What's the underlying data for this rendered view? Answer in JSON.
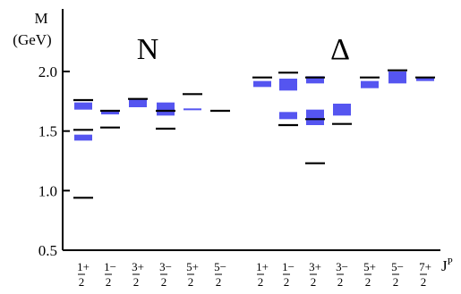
{
  "chart_data": {
    "type": "spectrum",
    "ylabel_line1": "M",
    "ylabel_line2": "(GeV)",
    "xlabel": "J",
    "xlabel_sup": "P",
    "ylim": [
      0.5,
      2.2
    ],
    "yticks": [
      0.5,
      1.0,
      1.5,
      2.0
    ],
    "ytick_labels": [
      "0.5",
      "1.0",
      "1.5",
      "2.0"
    ],
    "colors": {
      "band": "#5555f0",
      "line": "#000000"
    },
    "groups": [
      {
        "name": "N",
        "columns": [
          {
            "num": "1",
            "parity": "+",
            "den": "2",
            "bands": [
              [
                1.68,
                1.74
              ],
              [
                1.42,
                1.47
              ]
            ],
            "lines": [
              1.76,
              1.51,
              0.94
            ]
          },
          {
            "num": "1",
            "parity": "−",
            "den": "2",
            "bands": [
              [
                1.64,
                1.67
              ]
            ],
            "lines": [
              1.67,
              1.53
            ]
          },
          {
            "num": "3",
            "parity": "+",
            "den": "2",
            "bands": [
              [
                1.7,
                1.77
              ]
            ],
            "lines": [
              1.77
            ]
          },
          {
            "num": "3",
            "parity": "−",
            "den": "2",
            "bands": [
              [
                1.63,
                1.74
              ]
            ],
            "lines": [
              1.67,
              1.52
            ]
          },
          {
            "num": "5",
            "parity": "+",
            "den": "2",
            "bands": [
              [
                1.68,
                1.69
              ]
            ],
            "lines": [
              1.81
            ]
          },
          {
            "num": "5",
            "parity": "−",
            "den": "2",
            "bands": [],
            "lines": [
              1.67
            ]
          }
        ]
      },
      {
        "name": "Δ",
        "columns": [
          {
            "num": "1",
            "parity": "+",
            "den": "2",
            "bands": [
              [
                1.87,
                1.92
              ]
            ],
            "lines": [
              1.95
            ]
          },
          {
            "num": "1",
            "parity": "−",
            "den": "2",
            "bands": [
              [
                1.84,
                1.94
              ],
              [
                1.6,
                1.66
              ]
            ],
            "lines": [
              1.99,
              1.55
            ]
          },
          {
            "num": "3",
            "parity": "+",
            "den": "2",
            "bands": [
              [
                1.9,
                1.96
              ],
              [
                1.55,
                1.68
              ]
            ],
            "lines": [
              1.95,
              1.6,
              1.23
            ]
          },
          {
            "num": "3",
            "parity": "−",
            "den": "2",
            "bands": [
              [
                1.63,
                1.73
              ]
            ],
            "lines": [
              1.56
            ]
          },
          {
            "num": "5",
            "parity": "+",
            "den": "2",
            "bands": [
              [
                1.86,
                1.92
              ]
            ],
            "lines": [
              1.95
            ]
          },
          {
            "num": "5",
            "parity": "−",
            "den": "2",
            "bands": [
              [
                1.9,
                2.0
              ]
            ],
            "lines": [
              2.01
            ]
          },
          {
            "num": "7",
            "parity": "+",
            "den": "2",
            "bands": [
              [
                1.92,
                1.95
              ]
            ],
            "lines": [
              1.95
            ]
          }
        ]
      }
    ]
  }
}
